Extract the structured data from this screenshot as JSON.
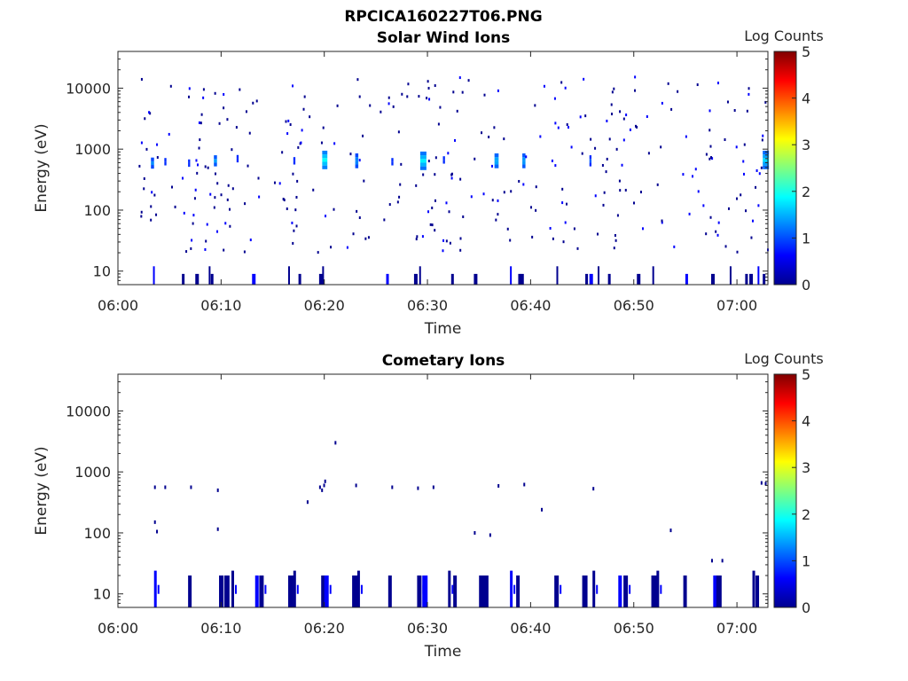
{
  "figure": {
    "title": "RPCICA160227T06.PNG"
  },
  "chart_data": [
    {
      "type": "heatmap",
      "title": "Solar Wind Ions",
      "xlabel": "Time",
      "ylabel": "Energy (eV)",
      "x_ticks": [
        "06:00",
        "06:10",
        "06:20",
        "06:30",
        "06:40",
        "06:50",
        "07:00"
      ],
      "x_range_min": [
        0,
        63
      ],
      "y_scale": "log",
      "y_ticks": [
        10,
        100,
        1000,
        10000
      ],
      "y_tick_labels": [
        "10",
        "100",
        "1000",
        "10000"
      ],
      "y_range": [
        6,
        40000
      ],
      "colorbar": {
        "label": "Log Counts",
        "range": [
          0,
          5
        ],
        "ticks": [
          "0",
          "1",
          "2",
          "3",
          "4",
          "5"
        ]
      },
      "blobs": [
        {
          "t": 3.2,
          "e": 550,
          "w": 0.3,
          "v": 1.3,
          "n": 3
        },
        {
          "t": 4.5,
          "e": 580,
          "w": 0.2,
          "v": 1.0,
          "n": 2
        },
        {
          "t": 6.8,
          "e": 550,
          "w": 0.2,
          "v": 1.0,
          "n": 2
        },
        {
          "t": 9.3,
          "e": 600,
          "w": 0.3,
          "v": 1.4,
          "n": 3
        },
        {
          "t": 11.5,
          "e": 650,
          "w": 0.2,
          "v": 1.0,
          "n": 2
        },
        {
          "t": 17.0,
          "e": 600,
          "w": 0.2,
          "v": 1.0,
          "n": 2
        },
        {
          "t": 19.8,
          "e": 620,
          "w": 0.5,
          "v": 1.9,
          "n": 5
        },
        {
          "t": 23.0,
          "e": 600,
          "w": 0.3,
          "v": 1.4,
          "n": 4
        },
        {
          "t": 26.5,
          "e": 580,
          "w": 0.2,
          "v": 1.0,
          "n": 2
        },
        {
          "t": 29.3,
          "e": 600,
          "w": 0.6,
          "v": 1.8,
          "n": 5
        },
        {
          "t": 31.5,
          "e": 620,
          "w": 0.2,
          "v": 1.0,
          "n": 2
        },
        {
          "t": 36.5,
          "e": 600,
          "w": 0.4,
          "v": 1.6,
          "n": 4
        },
        {
          "t": 39.2,
          "e": 600,
          "w": 0.3,
          "v": 1.5,
          "n": 4
        },
        {
          "t": 45.7,
          "e": 600,
          "w": 0.2,
          "v": 1.1,
          "n": 3
        },
        {
          "t": 62.5,
          "e": 620,
          "w": 0.6,
          "v": 1.7,
          "n": 5
        }
      ],
      "low_energy_columns": [
        3.4,
        6.2,
        7.5,
        8.8,
        9.0,
        13.0,
        16.5,
        17.5,
        19.5,
        19.8,
        26.0,
        28.7,
        29.2,
        32.3,
        34.5,
        38.0,
        38.8,
        39.0,
        42.5,
        45.3,
        45.7,
        46.5,
        47.5,
        50.3,
        51.8,
        55.0,
        57.5,
        59.3,
        60.8,
        61.2,
        62.0,
        62.5
      ],
      "speckle_seed": 7,
      "speckle_count": 330
    },
    {
      "type": "heatmap",
      "title": "Cometary Ions",
      "xlabel": "Time",
      "ylabel": "Energy (eV)",
      "x_ticks": [
        "06:00",
        "06:10",
        "06:20",
        "06:30",
        "06:40",
        "06:50",
        "07:00"
      ],
      "x_range_min": [
        0,
        63
      ],
      "y_scale": "log",
      "y_ticks": [
        10,
        100,
        1000,
        10000
      ],
      "y_tick_labels": [
        "10",
        "100",
        "1000",
        "10000"
      ],
      "y_range": [
        6,
        40000
      ],
      "colorbar": {
        "label": "Log Counts",
        "range": [
          0,
          5
        ],
        "ticks": [
          "0",
          "1",
          "2",
          "3",
          "4",
          "5"
        ]
      },
      "low_energy_columns": [
        3.5,
        6.8,
        9.8,
        10.3,
        11.0,
        13.3,
        13.7,
        16.5,
        17.0,
        19.7,
        20.0,
        22.7,
        23.2,
        26.2,
        29.0,
        29.5,
        32.0,
        32.5,
        35.0,
        35.4,
        38.0,
        38.6,
        42.3,
        45.0,
        46.0,
        48.5,
        49.0,
        51.7,
        52.2,
        54.8,
        57.7,
        58.0,
        61.5,
        61.8
      ],
      "points": [
        {
          "t": 3.5,
          "e": 560
        },
        {
          "t": 4.5,
          "e": 560
        },
        {
          "t": 7.0,
          "e": 560
        },
        {
          "t": 9.6,
          "e": 500
        },
        {
          "t": 3.5,
          "e": 150
        },
        {
          "t": 3.7,
          "e": 105
        },
        {
          "t": 9.6,
          "e": 115
        },
        {
          "t": 18.3,
          "e": 320
        },
        {
          "t": 19.5,
          "e": 560
        },
        {
          "t": 19.9,
          "e": 600
        },
        {
          "t": 20.0,
          "e": 700
        },
        {
          "t": 19.7,
          "e": 500
        },
        {
          "t": 21.0,
          "e": 3000
        },
        {
          "t": 23.0,
          "e": 600
        },
        {
          "t": 26.5,
          "e": 560
        },
        {
          "t": 29.0,
          "e": 540
        },
        {
          "t": 30.5,
          "e": 560
        },
        {
          "t": 34.5,
          "e": 100
        },
        {
          "t": 36.0,
          "e": 92
        },
        {
          "t": 36.8,
          "e": 590
        },
        {
          "t": 39.3,
          "e": 620
        },
        {
          "t": 41.0,
          "e": 240
        },
        {
          "t": 46.0,
          "e": 530
        },
        {
          "t": 53.5,
          "e": 110
        },
        {
          "t": 57.5,
          "e": 35
        },
        {
          "t": 58.5,
          "e": 35
        },
        {
          "t": 62.3,
          "e": 660
        },
        {
          "t": 62.7,
          "e": 640
        }
      ]
    }
  ]
}
